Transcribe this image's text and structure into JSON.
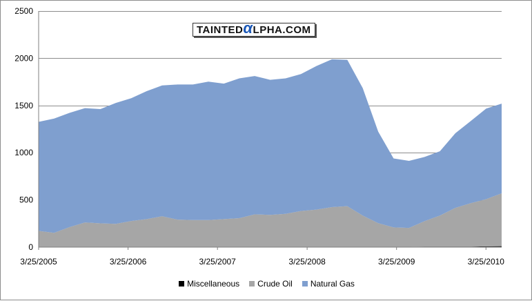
{
  "watermark": {
    "pre": "TAINTED",
    "alpha": "α",
    "post": "LPHA.COM"
  },
  "chart_data": {
    "type": "area",
    "stacked": true,
    "title": "",
    "xlabel": "",
    "ylabel": "",
    "ylim": [
      0,
      2500
    ],
    "yticks": [
      0,
      500,
      1000,
      1500,
      2000,
      2500
    ],
    "xlim": [
      "2005-03-25",
      "2010-05-28"
    ],
    "xticks": [
      {
        "date": "2005-03-25",
        "label": "3/25/2005"
      },
      {
        "date": "2006-03-25",
        "label": "3/25/2006"
      },
      {
        "date": "2007-03-25",
        "label": "3/25/2007"
      },
      {
        "date": "2008-03-25",
        "label": "3/25/2008"
      },
      {
        "date": "2009-03-25",
        "label": "3/25/2009"
      },
      {
        "date": "2010-03-25",
        "label": "3/25/2010"
      }
    ],
    "grid": "horizontal",
    "legend_position": "bottom",
    "x": [
      "2005-03-25",
      "2005-05-27",
      "2005-07-29",
      "2005-09-30",
      "2005-12-02",
      "2006-02-03",
      "2006-04-07",
      "2006-06-09",
      "2006-08-11",
      "2006-10-13",
      "2006-12-15",
      "2007-02-16",
      "2007-04-20",
      "2007-06-22",
      "2007-08-24",
      "2007-10-26",
      "2007-12-28",
      "2008-02-29",
      "2008-05-02",
      "2008-07-04",
      "2008-09-05",
      "2008-11-07",
      "2009-01-09",
      "2009-03-13",
      "2009-05-15",
      "2009-07-17",
      "2009-09-18",
      "2009-11-20",
      "2010-01-22",
      "2010-03-26",
      "2010-05-28"
    ],
    "series": [
      {
        "name": "Miscellaneous",
        "color": "#000000",
        "values": [
          2,
          2,
          2,
          2,
          2,
          2,
          2,
          2,
          2,
          2,
          2,
          2,
          2,
          2,
          2,
          2,
          2,
          3,
          3,
          4,
          4,
          4,
          4,
          4,
          4,
          5,
          5,
          6,
          6,
          8,
          10
        ]
      },
      {
        "name": "Crude Oil",
        "color": "#a6a6a6",
        "values": [
          170,
          150,
          210,
          260,
          250,
          245,
          275,
          295,
          325,
          290,
          285,
          285,
          295,
          305,
          345,
          340,
          350,
          380,
          395,
          420,
          430,
          330,
          250,
          205,
          200,
          270,
          330,
          410,
          460,
          500,
          560
        ]
      },
      {
        "name": "Natural Gas",
        "color": "#7f9fcf",
        "values": [
          1155,
          1210,
          1210,
          1210,
          1210,
          1280,
          1300,
          1355,
          1385,
          1430,
          1435,
          1465,
          1435,
          1480,
          1465,
          1430,
          1435,
          1450,
          1520,
          1565,
          1550,
          1350,
          970,
          730,
          710,
          680,
          680,
          790,
          870,
          960,
          950
        ]
      }
    ]
  }
}
